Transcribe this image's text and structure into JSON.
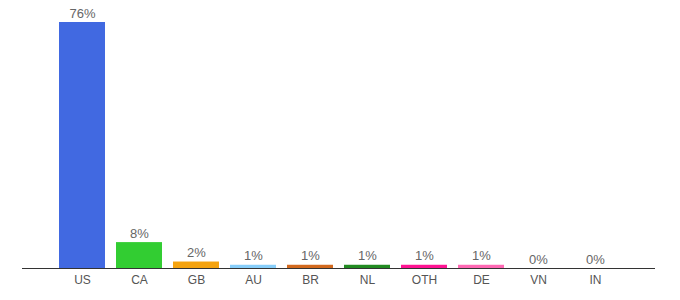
{
  "chart_data": {
    "type": "bar",
    "categories": [
      "US",
      "CA",
      "GB",
      "AU",
      "BR",
      "NL",
      "OTH",
      "DE",
      "VN",
      "IN"
    ],
    "values": [
      76,
      8,
      2,
      1,
      1,
      1,
      1,
      1,
      0,
      0
    ],
    "value_labels": [
      "76%",
      "8%",
      "2%",
      "1%",
      "1%",
      "1%",
      "1%",
      "1%",
      "0%",
      "0%"
    ],
    "colors": [
      "#4169e1",
      "#32cd32",
      "#f5a30f",
      "#87cefa",
      "#d2691e",
      "#228b22",
      "#ff1493",
      "#ff69b4",
      "#9370db",
      "#20b2aa"
    ],
    "ylim": [
      0,
      76
    ],
    "data_labels": true,
    "tick_labels": "x",
    "grid": false
  }
}
